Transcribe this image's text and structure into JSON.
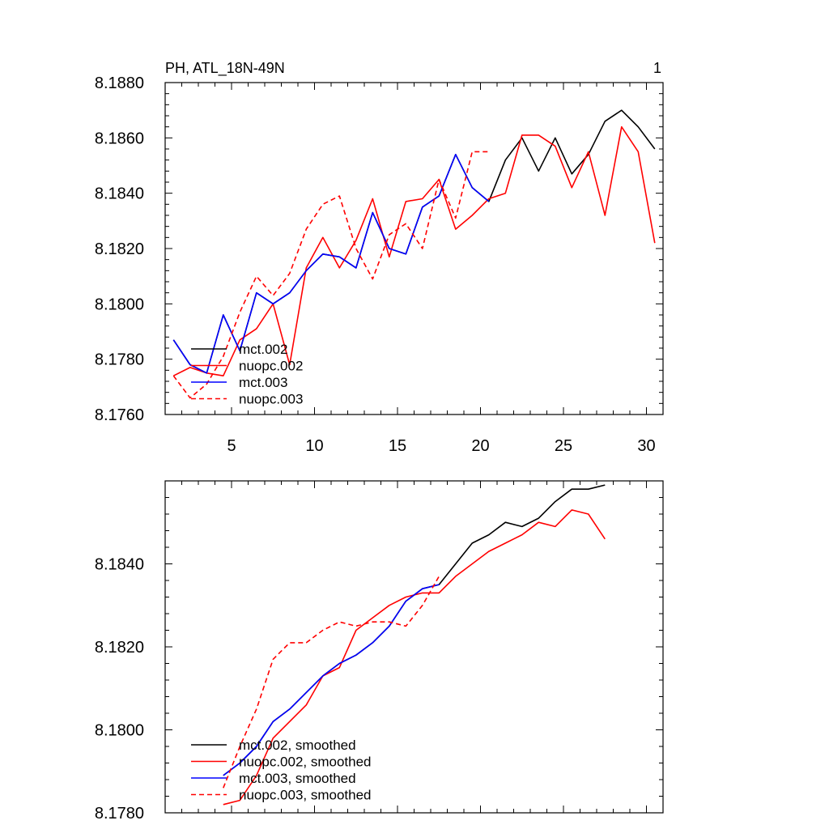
{
  "chart_data": [
    {
      "type": "line",
      "title": "PH, ATL_18N-49N",
      "panel_label": "1",
      "xlim": [
        1,
        31
      ],
      "ylim": [
        8.176,
        8.188
      ],
      "xticks": [
        5,
        10,
        15,
        20,
        25,
        30
      ],
      "xtick_labels": [
        "5",
        "10",
        "15",
        "20",
        "25",
        "30"
      ],
      "yticks": [
        8.176,
        8.178,
        8.18,
        8.182,
        8.184,
        8.186,
        8.188
      ],
      "ytick_labels": [
        "8.1760",
        "8.1780",
        "8.1800",
        "8.1820",
        "8.1840",
        "8.1860",
        "8.1880"
      ],
      "legend_position": "bottom-left",
      "series": [
        {
          "name": "mct.002",
          "color": "#000000",
          "dash": "solid",
          "x": [
            1.5,
            2.5,
            3.5,
            4.5,
            5.5,
            6.5,
            7.5,
            8.5,
            9.5,
            10.5,
            11.5,
            12.5,
            13.5,
            14.5,
            15.5,
            16.5,
            17.5,
            18.5,
            19.5,
            20.5,
            21.5,
            22.5,
            23.5,
            24.5,
            25.5,
            26.5,
            27.5,
            28.5,
            29.5,
            30.5
          ],
          "values": [
            8.1787,
            8.1778,
            8.1775,
            8.1796,
            8.1783,
            8.1804,
            8.18,
            8.1804,
            8.1812,
            8.1818,
            8.1817,
            8.1813,
            8.1833,
            8.182,
            8.1818,
            8.1835,
            8.1839,
            8.1854,
            8.1842,
            8.1837,
            8.1852,
            8.186,
            8.1848,
            8.186,
            8.1847,
            8.1854,
            8.1866,
            8.187,
            8.1864,
            8.1856
          ]
        },
        {
          "name": "nuopc.002",
          "color": "#ff0000",
          "dash": "solid",
          "x": [
            1.5,
            2.5,
            3.5,
            4.5,
            5.5,
            6.5,
            7.5,
            8.5,
            9.5,
            10.5,
            11.5,
            12.5,
            13.5,
            14.5,
            15.5,
            16.5,
            17.5,
            18.5,
            19.5,
            20.5,
            21.5,
            22.5,
            23.5,
            24.5,
            25.5,
            26.5,
            27.5,
            28.5,
            29.5,
            30.5
          ],
          "values": [
            8.1774,
            8.1777,
            8.1775,
            8.1774,
            8.1787,
            8.1791,
            8.18,
            8.1778,
            8.1813,
            8.1824,
            8.1813,
            8.1823,
            8.1838,
            8.1817,
            8.1837,
            8.1838,
            8.1845,
            8.1827,
            8.1832,
            8.1838,
            8.184,
            8.1861,
            8.1861,
            8.1857,
            8.1842,
            8.1855,
            8.1832,
            8.1864,
            8.1855,
            8.1822
          ]
        },
        {
          "name": "mct.003",
          "color": "#0000ff",
          "dash": "solid",
          "x": [
            1.5,
            2.5,
            3.5,
            4.5,
            5.5,
            6.5,
            7.5,
            8.5,
            9.5,
            10.5,
            11.5,
            12.5,
            13.5,
            14.5,
            15.5,
            16.5,
            17.5,
            18.5,
            19.5,
            20.5
          ],
          "values": [
            8.1787,
            8.1778,
            8.1775,
            8.1796,
            8.1783,
            8.1804,
            8.18,
            8.1804,
            8.1812,
            8.1818,
            8.1817,
            8.1813,
            8.1833,
            8.182,
            8.1818,
            8.1835,
            8.1839,
            8.1854,
            8.1842,
            8.1837
          ]
        },
        {
          "name": "nuopc.003",
          "color": "#ff0000",
          "dash": "dashed",
          "x": [
            1.5,
            2.5,
            3.5,
            4.5,
            5.5,
            6.5,
            7.5,
            8.5,
            9.5,
            10.5,
            11.5,
            12.5,
            13.5,
            14.5,
            15.5,
            16.5,
            17.5,
            18.5,
            19.5,
            20.5
          ],
          "values": [
            8.1774,
            8.1766,
            8.1771,
            8.1781,
            8.1797,
            8.181,
            8.1803,
            8.1811,
            8.1827,
            8.1836,
            8.1839,
            8.182,
            8.1809,
            8.1825,
            8.1829,
            8.182,
            8.1845,
            8.1831,
            8.1855,
            8.1855
          ]
        }
      ]
    },
    {
      "type": "line",
      "title": "",
      "xlim": [
        1,
        31
      ],
      "ylim": [
        8.178,
        8.186
      ],
      "xticks": [
        5,
        10,
        15,
        20,
        25,
        30
      ],
      "xtick_labels": [],
      "yticks": [
        8.178,
        8.18,
        8.182,
        8.184
      ],
      "ytick_labels": [
        "8.1780",
        "8.1800",
        "8.1820",
        "8.1840"
      ],
      "legend_position": "bottom-left",
      "series": [
        {
          "name": "mct.002, smoothed",
          "color": "#000000",
          "dash": "solid",
          "x": [
            4.5,
            5.5,
            6.5,
            7.5,
            8.5,
            9.5,
            10.5,
            11.5,
            12.5,
            13.5,
            14.5,
            15.5,
            16.5,
            17.5,
            18.5,
            19.5,
            20.5,
            21.5,
            22.5,
            23.5,
            24.5,
            25.5,
            26.5,
            27.5
          ],
          "values": [
            8.1789,
            8.1792,
            8.1796,
            8.1802,
            8.1805,
            8.1809,
            8.1813,
            8.1816,
            8.1818,
            8.1821,
            8.1825,
            8.1831,
            8.1834,
            8.1835,
            8.184,
            8.1845,
            8.1847,
            8.185,
            8.1849,
            8.1851,
            8.1855,
            8.1858,
            8.1858,
            8.1859
          ]
        },
        {
          "name": "nuopc.002, smoothed",
          "color": "#ff0000",
          "dash": "solid",
          "x": [
            4.5,
            5.5,
            6.5,
            7.5,
            8.5,
            9.5,
            10.5,
            11.5,
            12.5,
            13.5,
            14.5,
            15.5,
            16.5,
            17.5,
            18.5,
            19.5,
            20.5,
            21.5,
            22.5,
            23.5,
            24.5,
            25.5,
            26.5,
            27.5
          ],
          "values": [
            8.1782,
            8.1783,
            8.1789,
            8.1798,
            8.1802,
            8.1806,
            8.1813,
            8.1815,
            8.1824,
            8.1827,
            8.183,
            8.1832,
            8.1833,
            8.1833,
            8.1837,
            8.184,
            8.1843,
            8.1845,
            8.1847,
            8.185,
            8.1849,
            8.1853,
            8.1852,
            8.1846
          ]
        },
        {
          "name": "mct.003, smoothed",
          "color": "#0000ff",
          "dash": "solid",
          "x": [
            4.5,
            5.5,
            6.5,
            7.5,
            8.5,
            9.5,
            10.5,
            11.5,
            12.5,
            13.5,
            14.5,
            15.5,
            16.5,
            17.5
          ],
          "values": [
            8.1789,
            8.1792,
            8.1796,
            8.1802,
            8.1805,
            8.1809,
            8.1813,
            8.1816,
            8.1818,
            8.1821,
            8.1825,
            8.1831,
            8.1834,
            8.1835
          ]
        },
        {
          "name": "nuopc.003, smoothed",
          "color": "#ff0000",
          "dash": "dashed",
          "x": [
            4.5,
            5.5,
            6.5,
            7.5,
            8.5,
            9.5,
            10.5,
            11.5,
            12.5,
            13.5,
            14.5,
            15.5,
            16.5,
            17.5
          ],
          "values": [
            8.1786,
            8.1796,
            8.1805,
            8.1817,
            8.1821,
            8.1821,
            8.1824,
            8.1826,
            8.1825,
            8.1826,
            8.1826,
            8.1825,
            8.183,
            8.1837
          ]
        }
      ]
    }
  ]
}
